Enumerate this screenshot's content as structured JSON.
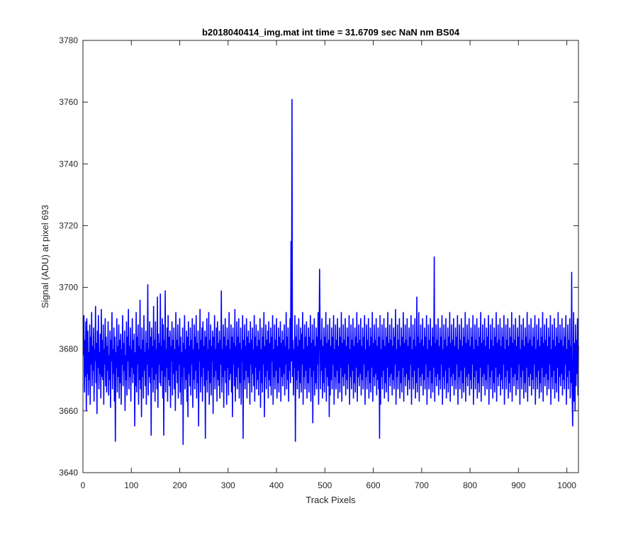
{
  "chart_data": {
    "type": "line",
    "title": "b2018040414_img.mat int time = 31.6709 sec  NaN nm BS04",
    "xlabel": "Track Pixels",
    "ylabel": "Signal (ADU) at pixel 693",
    "xlim": [
      0,
      1024
    ],
    "ylim": [
      3640,
      3780
    ],
    "xticks": [
      0,
      100,
      200,
      300,
      400,
      500,
      600,
      700,
      800,
      900,
      1000
    ],
    "yticks": [
      3640,
      3660,
      3680,
      3700,
      3720,
      3740,
      3760,
      3780
    ],
    "grid": false,
    "line_color": "#0000ff",
    "axes_color": "#262626",
    "series": [
      {
        "x_start": 1,
        "x_step": 1,
        "values_note_free": true,
        "values": [
          3678,
          3691,
          3666,
          3683,
          3671,
          3689,
          3660,
          3690,
          3672,
          3686,
          3665,
          3679,
          3670,
          3688,
          3662,
          3684,
          3675,
          3692,
          3668,
          3681,
          3673,
          3687,
          3663,
          3680,
          3676,
          3694,
          3669,
          3682,
          3659,
          3686,
          3674,
          3691,
          3667,
          3679,
          3672,
          3685,
          3664,
          3693,
          3671,
          3683,
          3670,
          3688,
          3662,
          3680,
          3675,
          3690,
          3668,
          3684,
          3666,
          3681,
          3673,
          3689,
          3665,
          3678,
          3670,
          3686,
          3661,
          3683,
          3676,
          3692,
          3667,
          3680,
          3672,
          3687,
          3663,
          3684,
          3650,
          3679,
          3674,
          3690,
          3666,
          3681,
          3671,
          3688,
          3664,
          3683,
          3669,
          3685,
          3662,
          3680,
          3675,
          3691,
          3668,
          3682,
          3673,
          3686,
          3660,
          3678,
          3670,
          3689,
          3665,
          3684,
          3676,
          3693,
          3667,
          3681,
          3671,
          3687,
          3663,
          3680,
          3674,
          3690,
          3669,
          3683,
          3672,
          3685,
          3655,
          3679,
          3668,
          3692,
          3666,
          3684,
          3675,
          3688,
          3662,
          3681,
          3670,
          3696,
          3667,
          3680,
          3658,
          3687,
          3671,
          3683,
          3664,
          3691,
          3673,
          3679,
          3668,
          3686,
          3662,
          3682,
          3675,
          3701,
          3665,
          3680,
          3671,
          3689,
          3669,
          3684,
          3652,
          3687,
          3674,
          3681,
          3666,
          3694,
          3670,
          3683,
          3663,
          3689,
          3672,
          3680,
          3667,
          3697,
          3661,
          3685,
          3675,
          3682,
          3669,
          3698,
          3668,
          3681,
          3673,
          3690,
          3664,
          3688,
          3652,
          3683,
          3671,
          3699,
          3666,
          3680,
          3674,
          3687,
          3663,
          3691,
          3670,
          3684,
          3668,
          3686,
          3661,
          3681,
          3676,
          3689,
          3665,
          3683,
          3672,
          3687,
          3667,
          3680,
          3660,
          3692,
          3673,
          3683,
          3669,
          3688,
          3664,
          3681,
          3675,
          3690,
          3666,
          3684,
          3662,
          3679,
          3671,
          3687,
          3649,
          3682,
          3674,
          3691,
          3667,
          3680,
          3670,
          3686,
          3663,
          3684,
          3658,
          3689,
          3672,
          3681,
          3668,
          3687,
          3665,
          3683,
          3675,
          3690,
          3661,
          3680,
          3670,
          3688,
          3667,
          3684,
          3673,
          3691,
          3664,
          3682,
          3669,
          3686,
          3655,
          3680,
          3676,
          3693,
          3666,
          3683,
          3671,
          3687,
          3663,
          3689,
          3674,
          3681,
          3668,
          3686,
          3651,
          3684,
          3670,
          3690,
          3666,
          3680,
          3673,
          3692,
          3662,
          3683,
          3669,
          3688,
          3665,
          3681,
          3676,
          3686,
          3659,
          3684,
          3671,
          3691,
          3667,
          3680,
          3673,
          3687,
          3663,
          3689,
          3670,
          3682,
          3668,
          3686,
          3664,
          3683,
          3675,
          3699,
          3666,
          3680,
          3671,
          3688,
          3661,
          3684,
          3673,
          3690,
          3669,
          3681,
          3662,
          3687,
          3674,
          3683,
          3665,
          3692,
          3670,
          3680,
          3672,
          3688,
          3666,
          3684,
          3658,
          3687,
          3675,
          3682,
          3668,
          3693,
          3663,
          3681,
          3671,
          3689,
          3667,
          3684,
          3674,
          3690,
          3664,
          3682,
          3669,
          3687,
          3662,
          3680,
          3676,
          3691,
          3651,
          3683,
          3670,
          3688,
          3667,
          3681,
          3673,
          3690,
          3664,
          3684,
          3671,
          3686,
          3669,
          3682,
          3662,
          3689,
          3675,
          3683,
          3666,
          3687,
          3672,
          3680,
          3668,
          3691,
          3663,
          3684,
          3674,
          3688,
          3667,
          3681,
          3670,
          3686,
          3665,
          3683,
          3673,
          3690,
          3661,
          3680,
          3669,
          3687,
          3666,
          3684,
          3675,
          3692,
          3658,
          3681,
          3671,
          3688,
          3667,
          3683,
          3673,
          3686,
          3664,
          3689,
          3670,
          3682,
          3668,
          3687,
          3665,
          3684,
          3676,
          3691,
          3662,
          3680,
          3671,
          3688,
          3667,
          3683,
          3673,
          3690,
          3664,
          3681,
          3669,
          3687,
          3666,
          3684,
          3674,
          3689,
          3663,
          3682,
          3671,
          3686,
          3668,
          3683,
          3672,
          3688,
          3665,
          3681,
          3675,
          3692,
          3667,
          3684,
          3670,
          3687,
          3663,
          3680,
          3673,
          3690,
          3669,
          3715,
          3676,
          3761,
          3671,
          3683,
          3665,
          3680,
          3674,
          3691,
          3650,
          3684,
          3670,
          3688,
          3667,
          3681,
          3673,
          3690,
          3664,
          3683,
          3669,
          3687,
          3666,
          3685,
          3675,
          3692,
          3662,
          3680,
          3671,
          3688,
          3667,
          3684,
          3673,
          3689,
          3664,
          3681,
          3669,
          3687,
          3666,
          3684,
          3674,
          3691,
          3663,
          3682,
          3671,
          3688,
          3656,
          3683,
          3673,
          3690,
          3665,
          3681,
          3669,
          3687,
          3667,
          3684,
          3675,
          3692,
          3662,
          3680,
          3706,
          3688,
          3667,
          3683,
          3673,
          3690,
          3664,
          3681,
          3669,
          3687,
          3666,
          3684,
          3674,
          3692,
          3663,
          3682,
          3671,
          3688,
          3668,
          3683,
          3658,
          3690,
          3665,
          3681,
          3670,
          3687,
          3667,
          3684,
          3675,
          3691,
          3662,
          3680,
          3671,
          3688,
          3667,
          3683,
          3673,
          3690,
          3664,
          3681,
          3669,
          3687,
          3666,
          3684,
          3674,
          3692,
          3663,
          3682,
          3671,
          3688,
          3668,
          3683,
          3672,
          3690,
          3665,
          3681,
          3670,
          3687,
          3667,
          3684,
          3675,
          3691,
          3662,
          3680,
          3671,
          3688,
          3667,
          3683,
          3673,
          3690,
          3664,
          3681,
          3669,
          3687,
          3666,
          3684,
          3674,
          3692,
          3663,
          3682,
          3671,
          3688,
          3668,
          3683,
          3672,
          3690,
          3665,
          3681,
          3670,
          3687,
          3667,
          3684,
          3675,
          3691,
          3662,
          3680,
          3671,
          3688,
          3667,
          3683,
          3673,
          3690,
          3664,
          3681,
          3669,
          3687,
          3666,
          3684,
          3674,
          3692,
          3663,
          3682,
          3671,
          3688,
          3668,
          3683,
          3672,
          3690,
          3665,
          3681,
          3670,
          3687,
          3667,
          3684,
          3651,
          3691,
          3662,
          3680,
          3671,
          3688,
          3667,
          3683,
          3673,
          3690,
          3664,
          3681,
          3669,
          3687,
          3666,
          3684,
          3674,
          3692,
          3663,
          3682,
          3671,
          3688,
          3668,
          3683,
          3672,
          3690,
          3665,
          3681,
          3670,
          3687,
          3667,
          3684,
          3675,
          3693,
          3662,
          3680,
          3671,
          3688,
          3667,
          3683,
          3673,
          3690,
          3664,
          3681,
          3669,
          3687,
          3666,
          3684,
          3674,
          3692,
          3663,
          3682,
          3671,
          3688,
          3668,
          3683,
          3672,
          3690,
          3665,
          3681,
          3670,
          3687,
          3667,
          3684,
          3675,
          3691,
          3662,
          3680,
          3671,
          3688,
          3667,
          3683,
          3673,
          3690,
          3664,
          3681,
          3669,
          3697,
          3666,
          3684,
          3674,
          3692,
          3663,
          3682,
          3671,
          3688,
          3668,
          3683,
          3672,
          3690,
          3665,
          3681,
          3670,
          3687,
          3667,
          3684,
          3675,
          3691,
          3662,
          3680,
          3671,
          3688,
          3667,
          3683,
          3673,
          3690,
          3664,
          3681,
          3669,
          3687,
          3666,
          3684,
          3674,
          3710,
          3663,
          3682,
          3671,
          3688,
          3668,
          3683,
          3672,
          3690,
          3665,
          3681,
          3670,
          3687,
          3667,
          3684,
          3675,
          3691,
          3662,
          3680,
          3671,
          3688,
          3667,
          3683,
          3673,
          3690,
          3664,
          3681,
          3669,
          3687,
          3666,
          3684,
          3674,
          3692,
          3663,
          3682,
          3671,
          3688,
          3668,
          3683,
          3672,
          3690,
          3665,
          3681,
          3670,
          3687,
          3667,
          3684,
          3675,
          3691,
          3662,
          3680,
          3671,
          3688,
          3667,
          3683,
          3673,
          3690,
          3664,
          3681,
          3669,
          3687,
          3666,
          3684,
          3674,
          3692,
          3663,
          3682,
          3671,
          3688,
          3668,
          3683,
          3672,
          3690,
          3665,
          3681,
          3670,
          3687,
          3667,
          3684,
          3675,
          3691,
          3662,
          3680,
          3671,
          3688,
          3667,
          3683,
          3673,
          3690,
          3664,
          3681,
          3669,
          3687,
          3666,
          3684,
          3674,
          3692,
          3663,
          3682,
          3671,
          3688,
          3668,
          3683,
          3672,
          3690,
          3665,
          3681,
          3670,
          3687,
          3667,
          3684,
          3675,
          3691,
          3662,
          3680,
          3671,
          3688,
          3667,
          3683,
          3673,
          3690,
          3664,
          3681,
          3669,
          3687,
          3666,
          3684,
          3674,
          3692,
          3663,
          3682,
          3671,
          3688,
          3668,
          3683,
          3672,
          3690,
          3665,
          3681,
          3670,
          3687,
          3667,
          3684,
          3675,
          3691,
          3662,
          3680,
          3671,
          3688,
          3667,
          3683,
          3673,
          3690,
          3664,
          3681,
          3669,
          3687,
          3666,
          3684,
          3674,
          3692,
          3663,
          3682,
          3671,
          3688,
          3668,
          3683,
          3672,
          3690,
          3665,
          3681,
          3670,
          3687,
          3667,
          3684,
          3675,
          3691,
          3662,
          3680,
          3671,
          3688,
          3667,
          3683,
          3673,
          3690,
          3664,
          3681,
          3669,
          3687,
          3666,
          3684,
          3674,
          3692,
          3663,
          3682,
          3671,
          3688,
          3668,
          3683,
          3672,
          3690,
          3665,
          3681,
          3670,
          3687,
          3667,
          3684,
          3675,
          3691,
          3662,
          3680,
          3671,
          3688,
          3667,
          3683,
          3673,
          3690,
          3664,
          3681,
          3669,
          3687,
          3666,
          3684,
          3674,
          3692,
          3663,
          3682,
          3671,
          3688,
          3668,
          3683,
          3672,
          3690,
          3665,
          3681,
          3670,
          3687,
          3667,
          3684,
          3675,
          3691,
          3662,
          3680,
          3671,
          3688,
          3667,
          3683,
          3673,
          3690,
          3664,
          3681,
          3669,
          3687,
          3666,
          3684,
          3674,
          3692,
          3663,
          3682,
          3671,
          3688,
          3668,
          3683,
          3672,
          3690,
          3665,
          3681,
          3670,
          3687,
          3667,
          3684,
          3675,
          3691,
          3662,
          3680,
          3671,
          3688,
          3667,
          3683,
          3673,
          3690,
          3664,
          3681,
          3669,
          3705,
          3666,
          3655,
          3674,
          3692,
          3663,
          3682,
          3660,
          3688,
          3668,
          3683,
          3672,
          3690,
          3665,
          3681,
          3670
        ]
      }
    ]
  }
}
